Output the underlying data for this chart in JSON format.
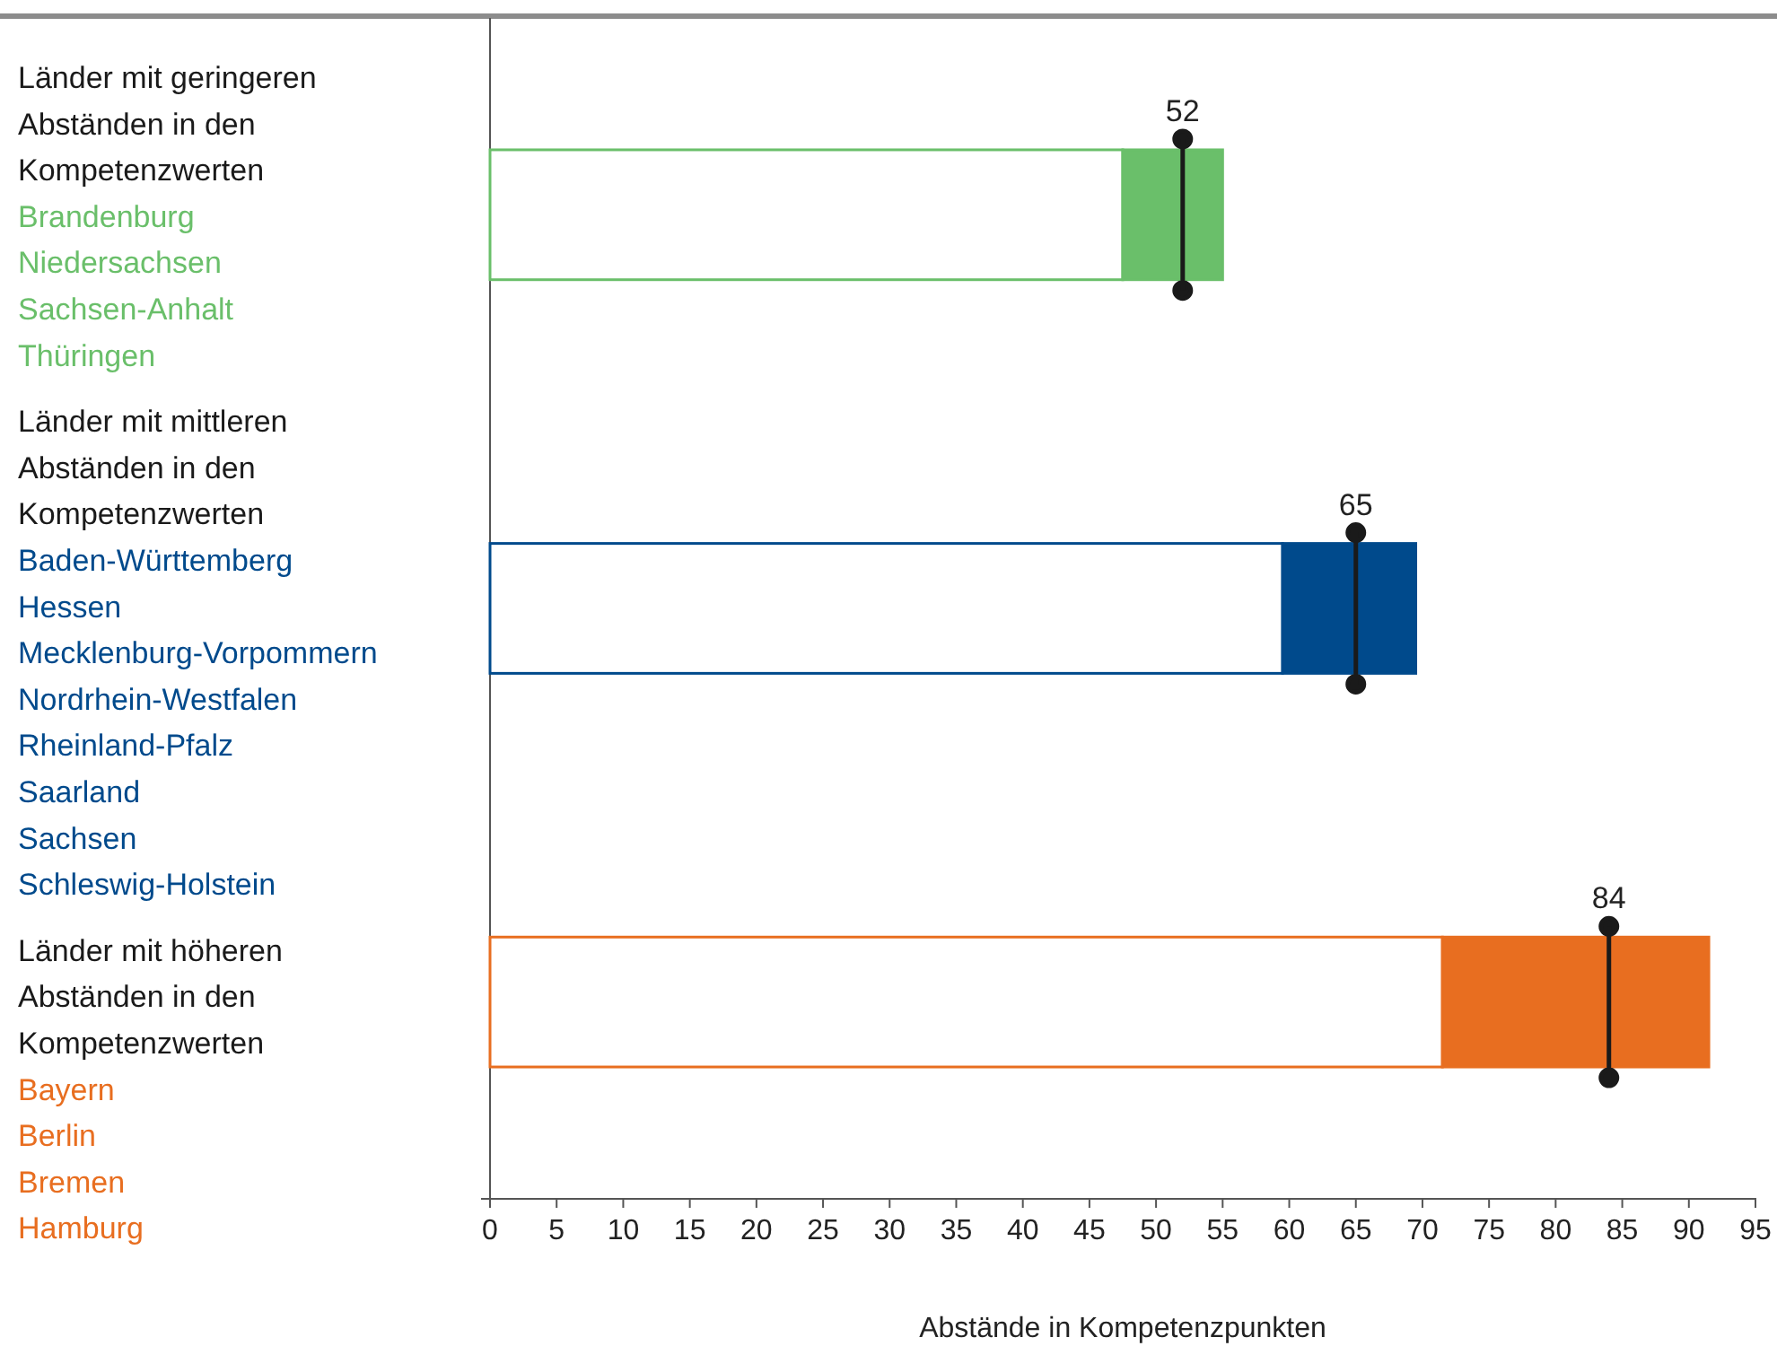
{
  "chart_data": {
    "type": "bar",
    "orientation": "horizontal",
    "stacked": true,
    "categories": [
      "Länder mit geringeren Abständen in den Kompetenzwerten",
      "Länder mit mittleren Abständen in den Kompetenzwerten",
      "Länder mit höheren Abständen in den Kompetenzwerten"
    ],
    "series": [
      {
        "color": "#ffffff",
        "values": [
          47.5,
          59.5,
          71.5
        ]
      },
      {
        "colors": [
          "#6abf6a",
          "#004a8c",
          "#e86e20"
        ],
        "values": [
          7.5,
          10,
          20
        ]
      },
      {
        "type": "scatter",
        "color": "#1a1a1a",
        "marker": "circle",
        "values": [
          52,
          65,
          84
        ],
        "value_labels": [
          "52",
          "65",
          "84"
        ]
      }
    ],
    "annotations": [
      "Brandenburg\nNiedersachsen\nSachsen-Anhalt\nThüringen",
      "Baden-Württemberg\nHessen\nMecklenburg-Vorpommern\nNordrhein-Westfalen\nRheinland-Pfalz\nSaarland\nSachsen\nSchleswig-Holstein",
      "Bayern\nBerlin\nBremen\nHamburg"
    ],
    "xlabel": "Abstände in Kompetenzpunkten",
    "xlim": [
      0,
      95
    ],
    "xticks": [
      0,
      5,
      10,
      15,
      20,
      25,
      30,
      35,
      40,
      45,
      50,
      55,
      60,
      65,
      70,
      75,
      80,
      85,
      90,
      95
    ],
    "grid": false
  }
}
